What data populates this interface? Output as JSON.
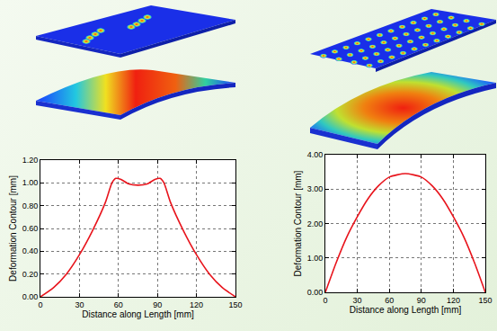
{
  "chart_data": [
    {
      "type": "line",
      "x": [
        0,
        10,
        20,
        30,
        40,
        50,
        55,
        58,
        62,
        68,
        75,
        82,
        88,
        92,
        95,
        100,
        110,
        120,
        130,
        140,
        150
      ],
      "values": [
        0,
        0.08,
        0.2,
        0.37,
        0.58,
        0.83,
        1.0,
        1.04,
        1.03,
        0.99,
        0.98,
        0.99,
        1.03,
        1.04,
        1.0,
        0.83,
        0.58,
        0.37,
        0.2,
        0.08,
        0
      ],
      "color": "#e8141c",
      "x_label": "Distance along Length [mm]",
      "y_label": "Deformation Contour [mm]",
      "xlim": [
        0,
        150
      ],
      "xticks": [
        0,
        30,
        60,
        90,
        120,
        150
      ],
      "ylim": [
        0,
        1.2
      ],
      "yticks": [
        {
          "value": 0,
          "label": "0.00"
        },
        {
          "value": 0.2,
          "label": "0.20"
        },
        {
          "value": 0.4,
          "label": "0.40"
        },
        {
          "value": 0.6,
          "label": "0.60"
        },
        {
          "value": 0.8,
          "label": "0.80"
        },
        {
          "value": 1.0,
          "label": "1.00"
        },
        {
          "value": 1.2,
          "label": "1.20"
        }
      ],
      "grid": true
    },
    {
      "type": "line",
      "x": [
        0,
        10,
        20,
        30,
        40,
        50,
        60,
        75,
        90,
        100,
        110,
        120,
        130,
        140,
        150
      ],
      "values": [
        0,
        0.85,
        1.6,
        2.2,
        2.72,
        3.1,
        3.35,
        3.45,
        3.35,
        3.1,
        2.72,
        2.2,
        1.6,
        0.85,
        0
      ],
      "color": "#e8141c",
      "x_label": "Distance along Length [mm]",
      "y_label": "Deformation Contour [mm]",
      "xlim": [
        0,
        150
      ],
      "xticks": [
        0,
        30,
        60,
        90,
        120,
        150
      ],
      "ylim": [
        0,
        4
      ],
      "yticks": [
        {
          "value": 0,
          "label": "0.00"
        },
        {
          "value": 1,
          "label": "1.00"
        },
        {
          "value": 2,
          "label": "2.00"
        },
        {
          "value": 3,
          "label": "3.00"
        },
        {
          "value": 4,
          "label": "4.00"
        }
      ],
      "grid": true
    }
  ]
}
